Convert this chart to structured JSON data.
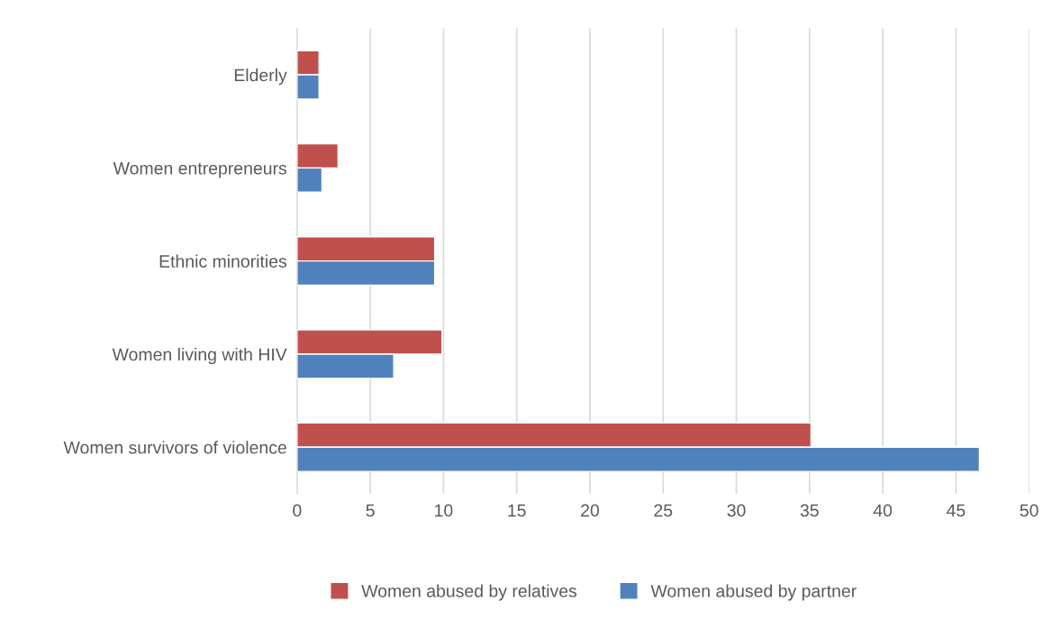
{
  "chart_data": {
    "type": "bar",
    "orientation": "horizontal",
    "categories": [
      "Elderly",
      "Women entrepreneurs",
      "Ethnic minorities",
      "Women living with HIV",
      "Women survivors of violence"
    ],
    "series": [
      {
        "name": "Women abused by relatives",
        "color": "#c0504d",
        "values": [
          1.5,
          2.8,
          9.4,
          9.9,
          35.1
        ]
      },
      {
        "name": "Women abused by partner",
        "color": "#4f81bd",
        "values": [
          1.5,
          1.7,
          9.4,
          6.6,
          46.6
        ]
      }
    ],
    "xlim": [
      0,
      50
    ],
    "xticks": [
      0,
      5,
      10,
      15,
      20,
      25,
      30,
      35,
      40,
      45,
      50
    ],
    "grid": "x",
    "legend": "bottom"
  }
}
